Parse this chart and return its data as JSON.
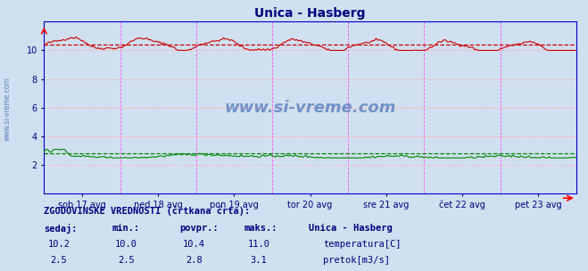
{
  "title": "Unica - Hasberg",
  "title_color": "#000080",
  "bg_color": "#d0e0f0",
  "plot_bg_color": "#d0e0f0",
  "x_labels": [
    "sob 17 avg",
    "ned 18 avg",
    "pon 19 avg",
    "tor 20 avg",
    "sre 21 avg",
    "čet 22 avg",
    "pet 23 avg"
  ],
  "y_ticks": [
    2,
    4,
    6,
    8,
    10
  ],
  "grid_color_h": "#ffaaaa",
  "grid_color_v": "#ff88ff",
  "temp_color": "#cc0000",
  "flow_color": "#008800",
  "watermark_text": "www.si-vreme.com",
  "watermark_color": "#2255aa",
  "sidebar_text": "www.si-vreme.com",
  "n_points": 336,
  "temp_min": 10.0,
  "temp_max": 11.0,
  "temp_avg": 10.4,
  "temp_now": 10.2,
  "flow_min": 2.5,
  "flow_max": 3.1,
  "flow_avg": 2.8,
  "flow_now": 2.5,
  "footer_line1": "ZGODOVINSKE VREDNOSTI (črtkana črta):",
  "footer_col1": "sedaj:",
  "footer_col2": "min.:",
  "footer_col3": "povpr.:",
  "footer_col4": "maks.:",
  "footer_col5": "Unica - Hasberg",
  "footer_label1": "temperatura[C]",
  "footer_label2": "pretok[m3/s]",
  "temp_color_legend": "#cc0000",
  "flow_color_legend": "#008800"
}
